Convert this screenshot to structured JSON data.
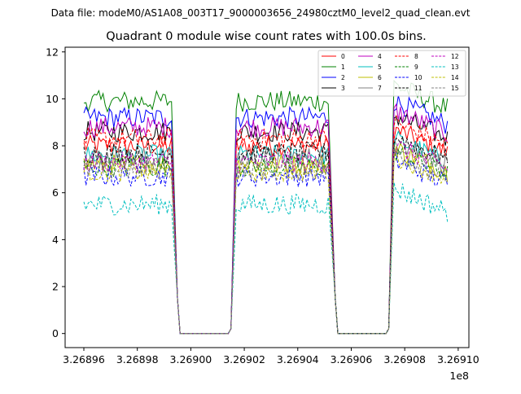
{
  "chart_data": {
    "type": "line",
    "suptitle": "Data file: modeM0/AS1A08_003T17_9000003656_24980cztM0_level2_quad_clean.evt",
    "title": "Quadrant 0 module wise count rates with 100.0s bins.",
    "xlabel": "",
    "ylabel": "",
    "x_offset_label": "1e8",
    "xlim": [
      3.268953,
      3.269104
    ],
    "ylim": [
      -0.6,
      12.2
    ],
    "x_ticks": [
      3.26896,
      3.26898,
      3.269,
      3.26902,
      3.26904,
      3.26906,
      3.26908,
      3.2691
    ],
    "x_tick_labels": [
      "3.26896",
      "3.26898",
      "3.26900",
      "3.26902",
      "3.26904",
      "3.26906",
      "3.26908",
      "3.26910"
    ],
    "y_ticks": [
      0,
      2,
      4,
      6,
      8,
      10,
      12
    ],
    "y_tick_labels": [
      "0",
      "2",
      "4",
      "6",
      "8",
      "10",
      "12"
    ],
    "legend_position": "top-right",
    "segments": [
      {
        "start": 3.26896,
        "end": 3.268993
      },
      {
        "start": 3.269017,
        "end": 3.269052
      },
      {
        "start": 3.269076,
        "end": 3.269096
      }
    ],
    "gaps": [
      {
        "start": 3.268995,
        "end": 3.269015
      },
      {
        "start": 3.269054,
        "end": 3.269074
      }
    ],
    "series": [
      {
        "name": "0",
        "mean": 8.0,
        "color": "#ff0000",
        "dash": "solid"
      },
      {
        "name": "1",
        "mean": 9.9,
        "color": "#008000",
        "dash": "solid"
      },
      {
        "name": "2",
        "mean": 9.2,
        "color": "#0000ff",
        "dash": "solid"
      },
      {
        "name": "3",
        "mean": 8.6,
        "color": "#000000",
        "dash": "solid"
      },
      {
        "name": "4",
        "mean": 8.8,
        "color": "#bf00bf",
        "dash": "solid"
      },
      {
        "name": "5",
        "mean": 7.6,
        "color": "#00bfbf",
        "dash": "solid"
      },
      {
        "name": "6",
        "mean": 7.2,
        "color": "#bfbf00",
        "dash": "solid"
      },
      {
        "name": "7",
        "mean": 7.5,
        "color": "#808080",
        "dash": "solid"
      },
      {
        "name": "8",
        "mean": 8.3,
        "color": "#ff0000",
        "dash": "dashed"
      },
      {
        "name": "9",
        "mean": 7.1,
        "color": "#008000",
        "dash": "dashed"
      },
      {
        "name": "10",
        "mean": 6.7,
        "color": "#0000ff",
        "dash": "dashed"
      },
      {
        "name": "11",
        "mean": 7.7,
        "color": "#000000",
        "dash": "dashed"
      },
      {
        "name": "12",
        "mean": 7.3,
        "color": "#bf00bf",
        "dash": "dashed"
      },
      {
        "name": "13",
        "mean": 5.5,
        "color": "#00bfbf",
        "dash": "dashed"
      },
      {
        "name": "14",
        "mean": 6.9,
        "color": "#bfbf00",
        "dash": "dashed"
      },
      {
        "name": "15",
        "mean": 7.0,
        "color": "#808080",
        "dash": "dashed"
      }
    ]
  }
}
